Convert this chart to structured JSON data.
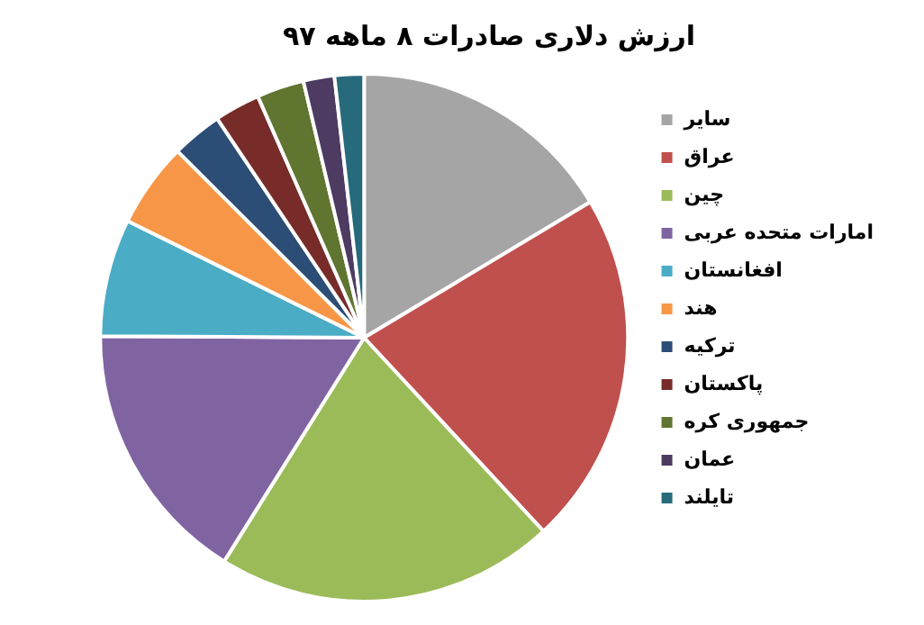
{
  "chart_data": {
    "type": "pie",
    "title": "ارزش دلاری صادرات ۸ ماهه ۹۷",
    "categories": [
      "سایر",
      "عراق",
      "چین",
      "امارات متحده عربی",
      "افغانستان",
      "هند",
      "ترکیه",
      "پاکستان",
      "جمهوری کره",
      "عمان",
      "تایلند"
    ],
    "values": [
      16.4,
      21.7,
      20.8,
      16.2,
      7.2,
      5.2,
      3.1,
      2.8,
      2.9,
      1.9,
      1.8
    ],
    "colors": [
      "#a5a5a5",
      "#c0504d",
      "#9bbb59",
      "#8064a2",
      "#4bacc6",
      "#f79646",
      "#2c4d75",
      "#772c2a",
      "#5f7530",
      "#4d3b62",
      "#276a7c"
    ],
    "legend": "right"
  }
}
